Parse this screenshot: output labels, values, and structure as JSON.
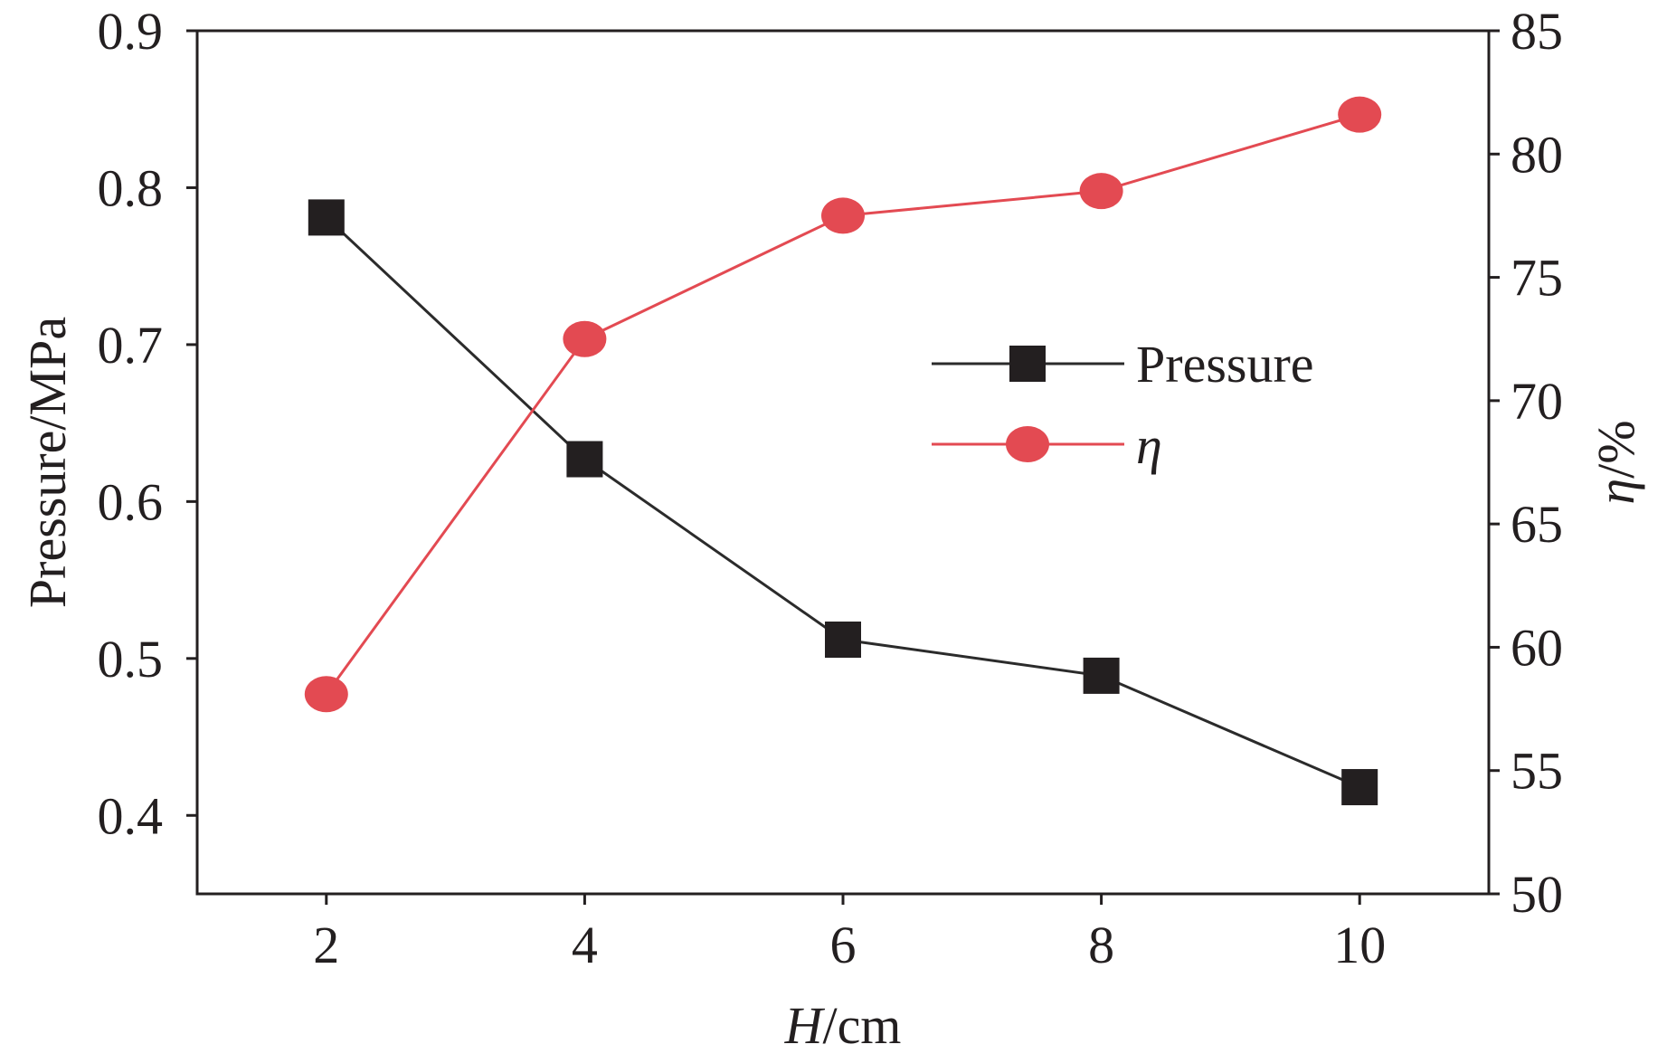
{
  "chart_data": {
    "type": "line",
    "title": "",
    "x": [
      2,
      4,
      6,
      8,
      10
    ],
    "xlabel": {
      "italic": "H",
      "rest": "/cm"
    },
    "ylabel_left": "Pressure/MPa",
    "ylabel_right": {
      "italic": "η",
      "rest": "/%"
    },
    "xlim": [
      1,
      11
    ],
    "ylim_left": [
      0.35,
      0.9
    ],
    "ylim_right": [
      50,
      85
    ],
    "x_ticks": [
      "2",
      "4",
      "6",
      "8",
      "10"
    ],
    "y_left_ticks": [
      "0.4",
      "0.5",
      "0.6",
      "0.7",
      "0.8",
      "0.9"
    ],
    "y_right_ticks": [
      "50",
      "55",
      "60",
      "65",
      "70",
      "75",
      "80",
      "85"
    ],
    "grid": false,
    "legend_position": "center-right",
    "series": [
      {
        "name": "Pressure",
        "axis": "left",
        "marker": "square",
        "color": "#2b2b2b",
        "values": [
          0.781,
          0.627,
          0.512,
          0.489,
          0.418
        ]
      },
      {
        "name": "η",
        "axis": "right",
        "marker": "circle",
        "color": "#e34a52",
        "values": [
          58.1,
          72.5,
          77.5,
          78.5,
          81.6
        ]
      }
    ]
  }
}
